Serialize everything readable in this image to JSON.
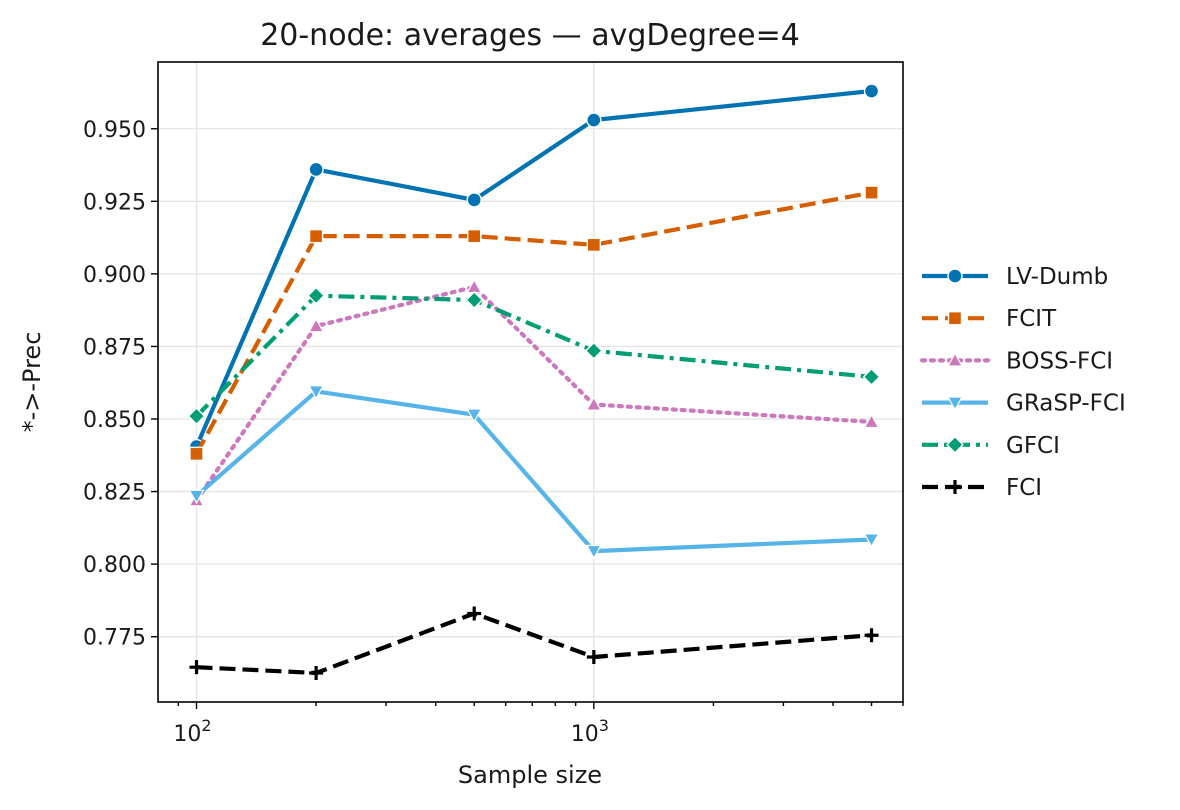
{
  "chart_data": {
    "type": "line",
    "title": "20-node: averages — avgDegree=4",
    "xlabel": "Sample size",
    "ylabel": "*->-Prec",
    "xscale": "log",
    "x": [
      100,
      200,
      500,
      1000,
      5000
    ],
    "xlim": [
      80,
      6000
    ],
    "ylim": [
      0.7525,
      0.973
    ],
    "x_major_ticks": [
      {
        "value": 100,
        "base": "10",
        "exp": "2"
      },
      {
        "value": 1000,
        "base": "10",
        "exp": "3"
      }
    ],
    "y_ticks": [
      0.775,
      0.8,
      0.825,
      0.85,
      0.875,
      0.9,
      0.925,
      0.95
    ],
    "y_tick_labels": [
      "0.775",
      "0.800",
      "0.825",
      "0.850",
      "0.875",
      "0.900",
      "0.925",
      "0.950"
    ],
    "grid": true,
    "legend_position": "right-outside",
    "series": [
      {
        "name": "LV-Dumb",
        "color": "#0173b2",
        "dash": "solid",
        "marker": "circle",
        "values": [
          0.8405,
          0.936,
          0.9255,
          0.953,
          0.963
        ]
      },
      {
        "name": "FCIT",
        "color": "#d55e00",
        "dash": "dashed",
        "marker": "square",
        "values": [
          0.838,
          0.913,
          0.913,
          0.91,
          0.928
        ]
      },
      {
        "name": "BOSS-FCI",
        "color": "#cc78bc",
        "dash": "dotted",
        "marker": "triangle-up",
        "values": [
          0.822,
          0.882,
          0.8955,
          0.855,
          0.849
        ]
      },
      {
        "name": "GRaSP-FCI",
        "color": "#56b4e9",
        "dash": "solid",
        "marker": "triangle-down",
        "values": [
          0.8235,
          0.8595,
          0.8515,
          0.8045,
          0.8085
        ]
      },
      {
        "name": "GFCI",
        "color": "#029e73",
        "dash": "dashdot",
        "marker": "diamond",
        "values": [
          0.851,
          0.8925,
          0.891,
          0.8735,
          0.8645
        ]
      },
      {
        "name": "FCI",
        "color": "#000000",
        "dash": "dashed",
        "marker": "plus",
        "values": [
          0.7645,
          0.7625,
          0.783,
          0.768,
          0.7755
        ]
      }
    ]
  }
}
